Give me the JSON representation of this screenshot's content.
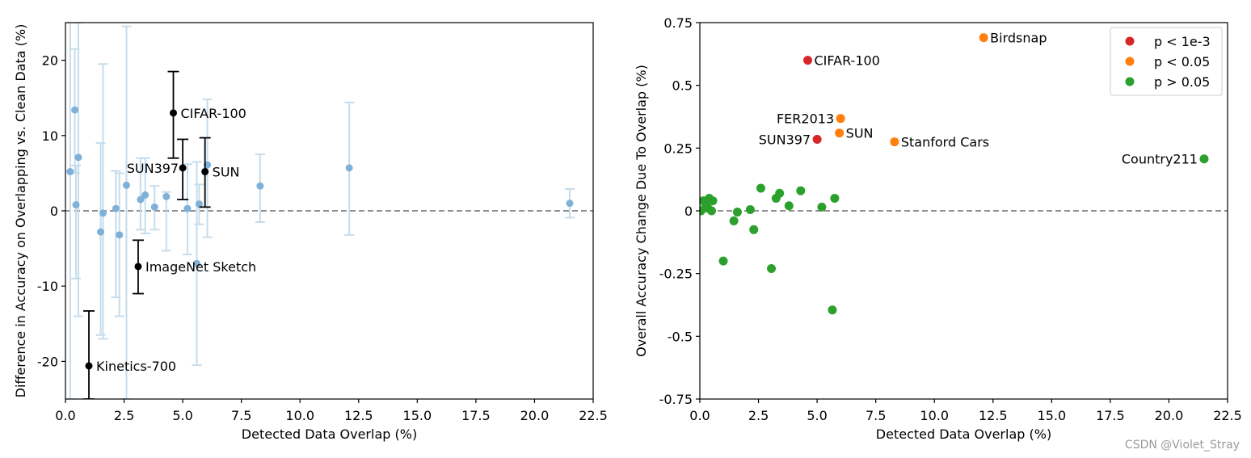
{
  "watermark": "CSDN @Violet_Stray",
  "colors": {
    "faded_blue": "#7fb1d8",
    "faded_bar": "#c6dceb",
    "black": "#000000",
    "red": "#d62728",
    "orange": "#ff7f0e",
    "green": "#2ca02c",
    "zero_line": "#808080"
  },
  "chart_data": [
    {
      "type": "scatter",
      "xlabel": "Detected Data Overlap (%)",
      "ylabel": "Difference in Accuracy on Overlapping vs. Clean Data (%)",
      "xlim": [
        0,
        22.5
      ],
      "ylim": [
        -25,
        25
      ],
      "xticks": [
        "0.0",
        "2.5",
        "5.0",
        "7.5",
        "10.0",
        "12.5",
        "15.0",
        "17.5",
        "20.0",
        "22.5"
      ],
      "xtick_values": [
        0,
        2.5,
        5,
        7.5,
        10,
        12.5,
        15,
        17.5,
        20,
        22.5
      ],
      "yticks": [
        "-20",
        "-10",
        "0",
        "10",
        "20"
      ],
      "ytick_values": [
        -20,
        -10,
        0,
        10,
        20
      ],
      "zero_line": true,
      "background_points": [
        {
          "x": 0.2,
          "y": 5.2,
          "low": -25,
          "high": 25
        },
        {
          "x": 0.4,
          "y": 13.4,
          "low": 5,
          "high": 21.5
        },
        {
          "x": 0.45,
          "y": 0.8,
          "low": -9,
          "high": 6
        },
        {
          "x": 0.55,
          "y": 7.1,
          "low": -14,
          "high": 25
        },
        {
          "x": 1.5,
          "y": -2.8,
          "low": -16.5,
          "high": 9
        },
        {
          "x": 1.6,
          "y": -0.3,
          "low": -17,
          "high": 19.5
        },
        {
          "x": 2.15,
          "y": 0.3,
          "low": -11.5,
          "high": 5.3
        },
        {
          "x": 2.3,
          "y": -3.2,
          "low": -14,
          "high": 5
        },
        {
          "x": 2.6,
          "y": 3.4,
          "low": -25,
          "high": 24.5
        },
        {
          "x": 3.2,
          "y": 1.5,
          "low": -2.5,
          "high": 7
        },
        {
          "x": 3.4,
          "y": 2.1,
          "low": -3,
          "high": 7
        },
        {
          "x": 3.8,
          "y": 0.5,
          "low": -2.5,
          "high": 3.3
        },
        {
          "x": 4.3,
          "y": 1.9,
          "low": -5.3,
          "high": 2.5
        },
        {
          "x": 5.2,
          "y": 0.3,
          "low": -5.8,
          "high": 6.2
        },
        {
          "x": 5.6,
          "y": -7,
          "low": -20.5,
          "high": 6.5
        },
        {
          "x": 5.7,
          "y": 0.9,
          "low": -1.8,
          "high": 3.5
        },
        {
          "x": 6.05,
          "y": 6.1,
          "low": -3.5,
          "high": 14.8
        },
        {
          "x": 8.3,
          "y": 3.3,
          "low": -1.5,
          "high": 7.5
        },
        {
          "x": 12.1,
          "y": 5.7,
          "low": -3.2,
          "high": 14.4
        },
        {
          "x": 21.5,
          "y": 1,
          "low": -0.9,
          "high": 2.9
        }
      ],
      "highlighted_points": [
        {
          "label": "CIFAR-100",
          "x": 4.6,
          "y": 13,
          "low": 7,
          "high": 18.5,
          "label_side": "right"
        },
        {
          "label": "SUN397",
          "x": 5.0,
          "y": 5.7,
          "low": 1.5,
          "high": 9.5,
          "label_side": "left"
        },
        {
          "label": "SUN",
          "x": 5.95,
          "y": 5.2,
          "low": 0.5,
          "high": 9.7,
          "label_side": "right"
        },
        {
          "label": "ImageNet Sketch",
          "x": 3.1,
          "y": -7.4,
          "low": -11,
          "high": -3.9,
          "label_side": "right"
        },
        {
          "label": "Kinetics-700",
          "x": 1.0,
          "y": -20.6,
          "low": -25,
          "high": -13.3,
          "label_side": "right"
        }
      ]
    },
    {
      "type": "scatter",
      "xlabel": "Detected Data Overlap (%)",
      "ylabel": "Overall Accuracy Change Due To Overlap (%)",
      "xlim": [
        0,
        22.5
      ],
      "ylim": [
        -0.75,
        0.75
      ],
      "xticks": [
        "0.0",
        "2.5",
        "5.0",
        "7.5",
        "10.0",
        "12.5",
        "15.0",
        "17.5",
        "20.0",
        "22.5"
      ],
      "xtick_values": [
        0,
        2.5,
        5,
        7.5,
        10,
        12.5,
        15,
        17.5,
        20,
        22.5
      ],
      "yticks": [
        "-0.75",
        "-0.5",
        "-0.25",
        "0",
        "0.25",
        "0.5",
        "0.75"
      ],
      "ytick_values": [
        -0.75,
        -0.5,
        -0.25,
        0,
        0.25,
        0.5,
        0.75
      ],
      "zero_line": true,
      "legend": [
        {
          "label": "p < 1e-3",
          "group": "red"
        },
        {
          "label": "p < 0.05",
          "group": "orange"
        },
        {
          "label": "p > 0.05",
          "group": "green"
        }
      ],
      "legend_position": "top-right",
      "points": [
        {
          "x": 4.6,
          "y": 0.6,
          "group": "red",
          "label": "CIFAR-100",
          "label_side": "right"
        },
        {
          "x": 5.0,
          "y": 0.285,
          "group": "red",
          "label": "SUN397",
          "label_side": "left"
        },
        {
          "x": 12.1,
          "y": 0.69,
          "group": "orange",
          "label": "Birdsnap",
          "label_side": "right"
        },
        {
          "x": 6.0,
          "y": 0.368,
          "group": "orange",
          "label": "FER2013",
          "label_side": "left"
        },
        {
          "x": 5.95,
          "y": 0.31,
          "group": "orange",
          "label": "SUN",
          "label_side": "right"
        },
        {
          "x": 8.3,
          "y": 0.275,
          "group": "orange",
          "label": "Stanford Cars",
          "label_side": "right"
        },
        {
          "x": 21.5,
          "y": 0.207,
          "group": "green",
          "label": "Country211",
          "label_side": "left"
        },
        {
          "x": 0.05,
          "y": 0.0,
          "group": "green"
        },
        {
          "x": 0.15,
          "y": 0.04,
          "group": "green"
        },
        {
          "x": 0.25,
          "y": 0.02,
          "group": "green"
        },
        {
          "x": 0.35,
          "y": 0.01,
          "group": "green"
        },
        {
          "x": 0.4,
          "y": 0.05,
          "group": "green"
        },
        {
          "x": 0.5,
          "y": 0.0,
          "group": "green"
        },
        {
          "x": 0.55,
          "y": 0.04,
          "group": "green"
        },
        {
          "x": 1.0,
          "y": -0.2,
          "group": "green"
        },
        {
          "x": 1.45,
          "y": -0.04,
          "group": "green"
        },
        {
          "x": 1.6,
          "y": -0.005,
          "group": "green"
        },
        {
          "x": 2.15,
          "y": 0.005,
          "group": "green"
        },
        {
          "x": 2.3,
          "y": -0.075,
          "group": "green"
        },
        {
          "x": 2.6,
          "y": 0.09,
          "group": "green"
        },
        {
          "x": 3.05,
          "y": -0.23,
          "group": "green"
        },
        {
          "x": 3.25,
          "y": 0.05,
          "group": "green"
        },
        {
          "x": 3.4,
          "y": 0.07,
          "group": "green"
        },
        {
          "x": 3.8,
          "y": 0.02,
          "group": "green"
        },
        {
          "x": 4.3,
          "y": 0.08,
          "group": "green"
        },
        {
          "x": 5.2,
          "y": 0.015,
          "group": "green"
        },
        {
          "x": 5.65,
          "y": -0.395,
          "group": "green"
        },
        {
          "x": 5.75,
          "y": 0.05,
          "group": "green"
        }
      ]
    }
  ]
}
